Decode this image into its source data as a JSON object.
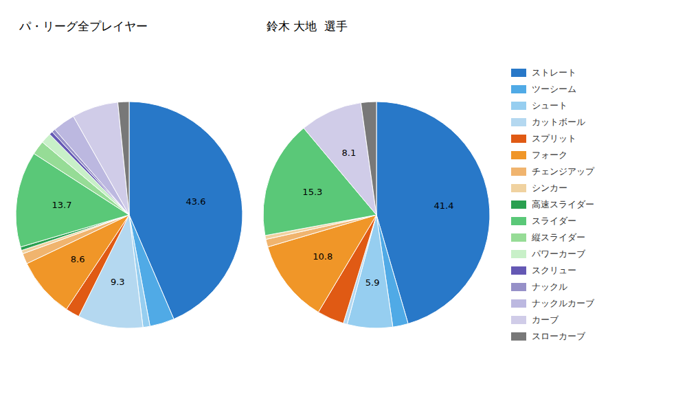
{
  "chart_data": [
    {
      "type": "pie",
      "title": "パ・リーグ全プレイヤー",
      "categories": [
        "ストレート",
        "ツーシーム",
        "シュート",
        "カットボール",
        "スプリット",
        "フォーク",
        "チェンジアップ",
        "シンカー",
        "高速スライダー",
        "スライダー",
        "縦スライダー",
        "パワーカーブ",
        "スクリュー",
        "ナックル",
        "ナックルカーブ",
        "カーブ",
        "スローカーブ"
      ],
      "values": [
        43.6,
        3.5,
        1.0,
        9.3,
        2.0,
        8.6,
        1.5,
        0.5,
        0.5,
        13.7,
        2.0,
        1.5,
        0.5,
        0.5,
        3.2,
        6.6,
        1.6
      ],
      "value_labels": [
        "43.6",
        null,
        null,
        "9.3",
        null,
        "8.6",
        null,
        null,
        null,
        "13.7",
        null,
        null,
        null,
        null,
        null,
        null,
        null
      ],
      "colors": [
        "#2878c8",
        "#50aae6",
        "#96cef0",
        "#b4d8f0",
        "#e05a14",
        "#f09628",
        "#f0b46e",
        "#f0d2a0",
        "#2aa050",
        "#5ac878",
        "#96dc96",
        "#c8f0c8",
        "#6458b4",
        "#9690c8",
        "#bcb8e0",
        "#d0cce8",
        "#787878"
      ],
      "legend": "right"
    },
    {
      "type": "pie",
      "title": "鈴木 大地  選手",
      "categories": [
        "ストレート",
        "ツーシーム",
        "シュート",
        "カットボール",
        "スプリット",
        "フォーク",
        "チェンジアップ",
        "シンカー",
        "高速スライダー",
        "スライダー",
        "縦スライダー",
        "パワーカーブ",
        "スクリュー",
        "ナックル",
        "ナックルカーブ",
        "カーブ",
        "スローカーブ"
      ],
      "values": [
        41.4,
        2.0,
        5.9,
        0.5,
        3.5,
        10.8,
        1.0,
        0.5,
        0.0,
        15.3,
        0.0,
        0.0,
        0.0,
        0.0,
        0.0,
        8.1,
        2.0
      ],
      "value_labels": [
        "41.4",
        null,
        "5.9",
        null,
        null,
        "10.8",
        null,
        null,
        null,
        "15.3",
        null,
        null,
        null,
        null,
        null,
        "8.1",
        null
      ],
      "colors": [
        "#2878c8",
        "#50aae6",
        "#96cef0",
        "#b4d8f0",
        "#e05a14",
        "#f09628",
        "#f0b46e",
        "#f0d2a0",
        "#2aa050",
        "#5ac878",
        "#96dc96",
        "#c8f0c8",
        "#6458b4",
        "#9690c8",
        "#bcb8e0",
        "#d0cce8",
        "#787878"
      ],
      "legend": "right"
    }
  ]
}
